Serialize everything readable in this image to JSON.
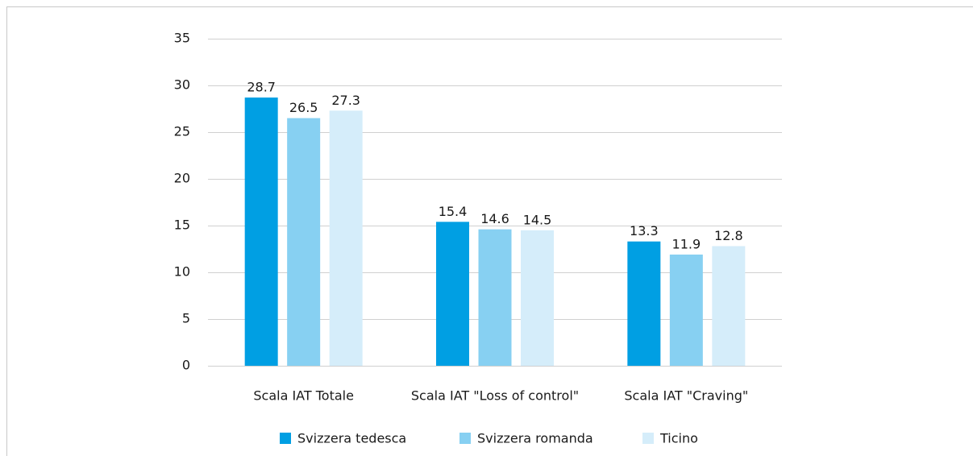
{
  "chart_data": {
    "type": "bar",
    "categories": [
      "Scala IAT Totale",
      "Scala IAT \"Loss of control\"",
      "Scala IAT \"Craving\""
    ],
    "series": [
      {
        "name": "Svizzera tedesca",
        "color": "#009fe3",
        "values": [
          28.7,
          15.4,
          13.3
        ]
      },
      {
        "name": "Svizzera romanda",
        "color": "#87d0f2",
        "values": [
          26.5,
          14.6,
          11.9
        ]
      },
      {
        "name": "Ticino",
        "color": "#d5edfa",
        "values": [
          27.3,
          14.5,
          12.8
        ]
      }
    ],
    "ylim": [
      0,
      35
    ],
    "yticks": [
      0,
      5,
      10,
      15,
      20,
      25,
      30,
      35
    ],
    "grid": true,
    "legend": "bottom"
  }
}
